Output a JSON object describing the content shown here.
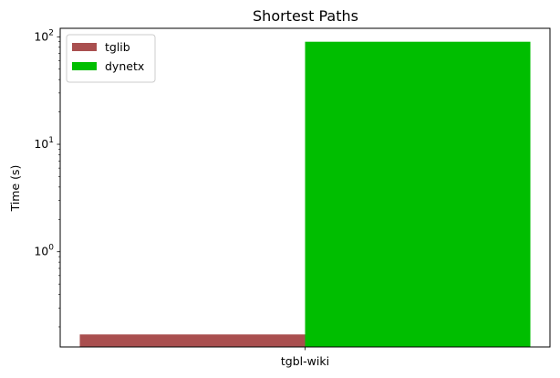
{
  "chart_data": {
    "type": "bar",
    "title": "Shortest Paths",
    "xlabel": "",
    "ylabel": "Time (s)",
    "yscale": "log",
    "ylim": [
      0.13,
      120
    ],
    "grid": false,
    "legend_position": "upper-left",
    "categories": [
      "tgbl-wiki"
    ],
    "series": [
      {
        "name": "tglib",
        "values": [
          0.17
        ],
        "color": "#a94f4f"
      },
      {
        "name": "dynetx",
        "values": [
          90
        ],
        "color": "#00be00"
      }
    ],
    "y_ticks": [
      {
        "value": 1,
        "base": "10",
        "exp": "0"
      },
      {
        "value": 10,
        "base": "10",
        "exp": "1"
      },
      {
        "value": 100,
        "base": "10",
        "exp": "2"
      }
    ]
  }
}
